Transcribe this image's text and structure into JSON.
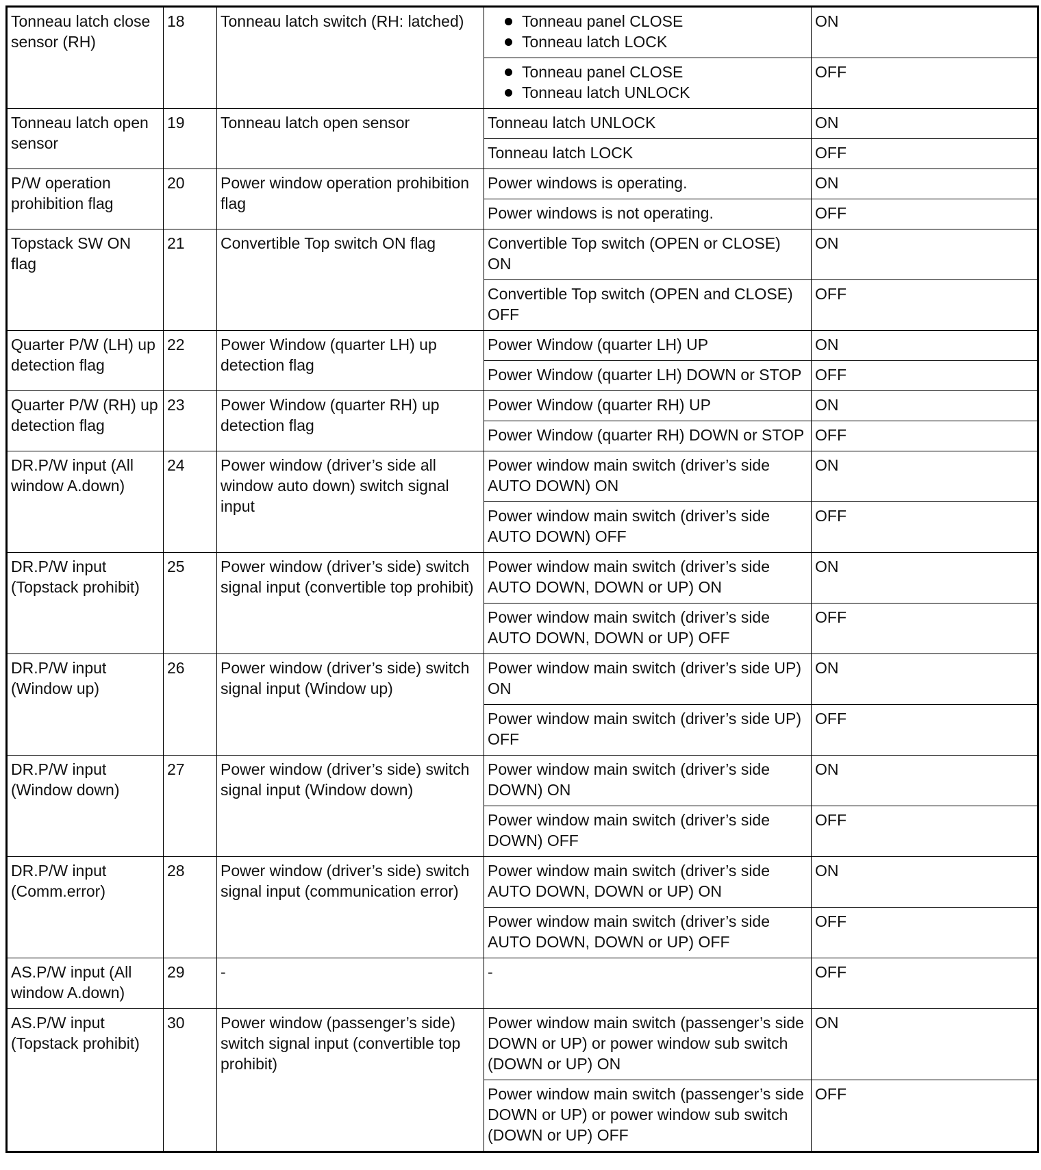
{
  "rows": [
    {
      "item": "Tonneau latch close sensor (RH)",
      "no": "18",
      "desc": "Tonneau latch switch (RH: latched)",
      "conds": [
        {
          "bullets": [
            "Tonneau panel CLOSE",
            "Tonneau latch LOCK"
          ],
          "val": "ON"
        },
        {
          "bullets": [
            "Tonneau panel CLOSE",
            "Tonneau latch UNLOCK"
          ],
          "val": "OFF"
        }
      ]
    },
    {
      "item": "Tonneau latch open sensor",
      "no": "19",
      "desc": "Tonneau latch open sensor",
      "conds": [
        {
          "text": "Tonneau latch UNLOCK",
          "val": "ON"
        },
        {
          "text": "Tonneau latch LOCK",
          "val": "OFF"
        }
      ]
    },
    {
      "item": "P/W operation prohibition flag",
      "no": "20",
      "desc": "Power window operation prohibition flag",
      "conds": [
        {
          "text": "Power windows is operating.",
          "val": "ON"
        },
        {
          "text": "Power windows is not operating.",
          "val": "OFF"
        }
      ]
    },
    {
      "item": "Topstack SW ON flag",
      "no": "21",
      "desc": "Convertible Top switch ON flag",
      "conds": [
        {
          "text": "Convertible Top switch (OPEN or CLOSE) ON",
          "val": "ON"
        },
        {
          "text": "Convertible Top switch (OPEN and CLOSE) OFF",
          "val": "OFF"
        }
      ]
    },
    {
      "item": "Quarter P/W (LH) up detection flag",
      "no": "22",
      "desc": "Power Window (quarter LH) up detection flag",
      "conds": [
        {
          "text": "Power Window (quarter LH) UP",
          "val": "ON"
        },
        {
          "text": "Power Window (quarter LH) DOWN or STOP",
          "val": "OFF"
        }
      ]
    },
    {
      "item": "Quarter P/W (RH) up detection flag",
      "no": "23",
      "desc": "Power Window (quarter RH) up detection flag",
      "conds": [
        {
          "text": "Power Window (quarter RH) UP",
          "val": "ON"
        },
        {
          "text": "Power Window (quarter RH) DOWN or STOP",
          "val": "OFF"
        }
      ]
    },
    {
      "item": "DR.P/W input (All window A.down)",
      "no": "24",
      "desc": "Power window (driver’s side all window auto down) switch signal input",
      "conds": [
        {
          "text": "Power window main switch (driver’s side AUTO DOWN) ON",
          "val": "ON"
        },
        {
          "text": "Power window main switch (driver’s side AUTO DOWN) OFF",
          "val": "OFF"
        }
      ]
    },
    {
      "item": "DR.P/W input (Topstack prohibit)",
      "no": "25",
      "desc": "Power window (driver’s side) switch signal input (convertible top prohibit)",
      "conds": [
        {
          "text": "Power window main switch (driver’s side AUTO DOWN, DOWN or UP) ON",
          "val": "ON"
        },
        {
          "text": "Power window main switch (driver’s side AUTO DOWN, DOWN or UP) OFF",
          "val": "OFF"
        }
      ]
    },
    {
      "item": "DR.P/W input (Window up)",
      "no": "26",
      "desc": "Power window (driver’s side) switch signal input (Window up)",
      "conds": [
        {
          "text": "Power window main switch (driver’s side UP) ON",
          "val": "ON"
        },
        {
          "text": "Power window main switch (driver’s side UP) OFF",
          "val": "OFF"
        }
      ]
    },
    {
      "item": "DR.P/W input (Window down)",
      "no": "27",
      "desc": "Power window (driver’s side) switch signal input (Window down)",
      "conds": [
        {
          "text": "Power window main switch (driver’s side DOWN) ON",
          "val": "ON"
        },
        {
          "text": "Power window main switch (driver’s side DOWN) OFF",
          "val": "OFF"
        }
      ]
    },
    {
      "item": "DR.P/W input (Comm.error)",
      "no": "28",
      "desc": "Power window (driver’s side) switch signal input (communication error)",
      "conds": [
        {
          "text": "Power window main switch (driver’s side AUTO DOWN, DOWN or UP) ON",
          "val": "ON"
        },
        {
          "text": "Power window main switch (driver’s side AUTO DOWN, DOWN or UP) OFF",
          "val": "OFF"
        }
      ]
    },
    {
      "item": "AS.P/W input (All window A.down)",
      "no": "29",
      "desc": "-",
      "conds": [
        {
          "text": "-",
          "val": "OFF"
        }
      ]
    },
    {
      "item": "AS.P/W input (Topstack prohibit)",
      "no": "30",
      "desc": "Power window (passenger’s side) switch signal input (convertible top prohibit)",
      "conds": [
        {
          "text": "Power window main switch (passenger’s side DOWN or UP) or power window sub switch (DOWN or UP) ON",
          "val": "ON"
        },
        {
          "text": "Power window main switch (passenger’s side DOWN or UP) or power window sub switch (DOWN or UP) OFF",
          "val": "OFF"
        }
      ]
    }
  ]
}
